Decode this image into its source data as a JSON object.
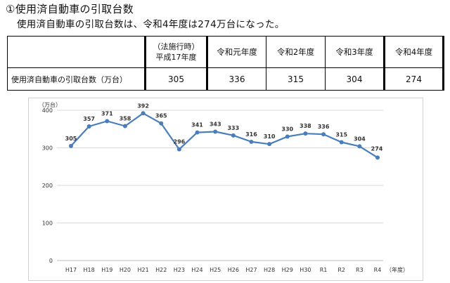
{
  "heading": "①使用済自動車の引取台数",
  "subline": "使用済自動車の引取台数は、令和4年度は274万台になった。",
  "table": {
    "row_label": "使用済自動車の引取台数（万台）",
    "columns": [
      {
        "line1": "（法施行時）",
        "line2": "平成17年度",
        "value": "305"
      },
      {
        "line1": "令和元年度",
        "line2": "",
        "value": "336"
      },
      {
        "line1": "令和2年度",
        "line2": "",
        "value": "315"
      },
      {
        "line1": "令和3年度",
        "line2": "",
        "value": "304"
      },
      {
        "line1": "令和4年度",
        "line2": "",
        "value": "274"
      }
    ]
  },
  "chart_data": {
    "type": "line",
    "title": "",
    "xlabel": "（年度）",
    "ylabel": "（万台）",
    "categories": [
      "H17",
      "H18",
      "H19",
      "H20",
      "H21",
      "H22",
      "H23",
      "H24",
      "H25",
      "H26",
      "H27",
      "H28",
      "H29",
      "H30",
      "R1",
      "R2",
      "R3",
      "R4"
    ],
    "series": [
      {
        "values": [
          305,
          357,
          371,
          358,
          392,
          365,
          296,
          341,
          343,
          333,
          316,
          310,
          330,
          338,
          336,
          315,
          304,
          274
        ]
      }
    ],
    "ylim": [
      0,
      400
    ],
    "yticks": [
      0,
      100,
      200,
      300,
      400
    ],
    "grid": true,
    "color": "#4a7ebb"
  }
}
